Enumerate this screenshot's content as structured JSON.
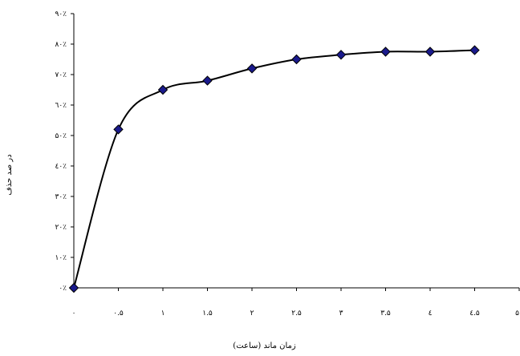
{
  "chart_data": {
    "type": "line",
    "title": "",
    "xlabel": "زمان ماند (ساعت)",
    "ylabel": "در صد حذف",
    "xlim": [
      0,
      5
    ],
    "ylim": [
      0,
      90
    ],
    "grid": false,
    "legend": "none",
    "x_ticks": [
      0,
      0.5,
      1,
      1.5,
      2,
      2.5,
      3,
      3.5,
      4,
      4.5,
      5
    ],
    "x_tick_labels": [
      "۰",
      "۰.۵",
      "۱",
      "۱.۵",
      "۲",
      "۲.۵",
      "۳",
      "۳.۵",
      "٤",
      "٤.۵",
      "۵"
    ],
    "y_ticks": [
      0,
      10,
      20,
      30,
      40,
      50,
      60,
      70,
      80,
      90
    ],
    "y_tick_labels": [
      "۰٪",
      "۱۰٪",
      "۲۰٪",
      "۳۰٪",
      "٤۰٪",
      "۵۰٪",
      "٦۰٪",
      "۷۰٪",
      "۸۰٪",
      "۹۰٪"
    ],
    "series": [
      {
        "x": [
          0,
          0.5,
          1,
          1.5,
          2,
          2.5,
          3,
          3.5,
          4,
          4.5
        ],
        "values": [
          0,
          52,
          65,
          68,
          72,
          75,
          76.5,
          77.5,
          77.5,
          78
        ],
        "marker": "diamond",
        "marker_color": "#1a1a8c",
        "line_color": "#000000"
      }
    ]
  }
}
